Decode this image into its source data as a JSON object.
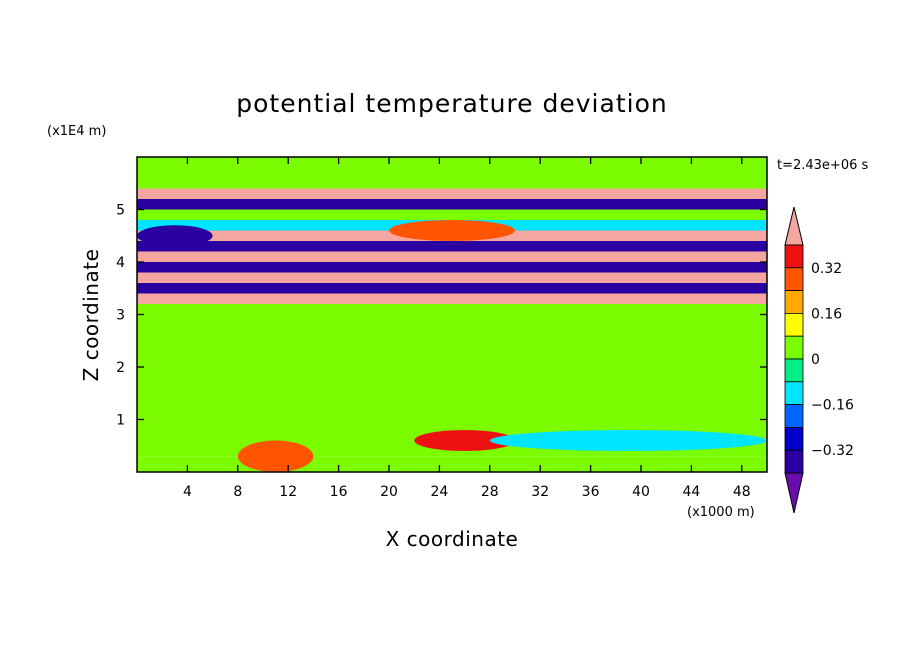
{
  "chart_data": {
    "type": "heatmap",
    "title": "potential temperature deviation",
    "xlabel": "X coordinate",
    "ylabel": "Z coordinate",
    "x_unit": "(x1000 m)",
    "y_unit": "(x1E4 m)",
    "time_label": "t=2.43e+06 s",
    "xlim": [
      0,
      50
    ],
    "ylim": [
      0,
      6
    ],
    "x_ticks": [
      "4",
      "8",
      "12",
      "16",
      "20",
      "24",
      "28",
      "32",
      "36",
      "40",
      "44",
      "48"
    ],
    "y_ticks": [
      "1",
      "2",
      "3",
      "4",
      "5"
    ],
    "colorbar": {
      "ticks": [
        "0.32",
        "0.16",
        "0",
        "-0.16",
        "-0.32"
      ],
      "levels": [
        -0.4,
        -0.32,
        -0.24,
        -0.16,
        -0.08,
        0,
        0.08,
        0.16,
        0.24,
        0.32,
        0.4
      ],
      "colors": [
        "#6a0dad",
        "#2a00a0",
        "#0000c8",
        "#0066ff",
        "#00e5ff",
        "#00ee88",
        "#7cfc00",
        "#ffff00",
        "#ffaa00",
        "#ff5500",
        "#ee1111",
        "#f4a6a0"
      ],
      "extend": "both"
    },
    "layers": [
      {
        "z": [
          0.0,
          0.3
        ],
        "value": 0.04
      },
      {
        "z": [
          0.3,
          0.6
        ],
        "value": 0.0
      },
      {
        "z": [
          0.6,
          0.8
        ],
        "value": 0.04
      },
      {
        "z": [
          0.8,
          3.2
        ],
        "value": 0.04
      },
      {
        "z": [
          3.2,
          3.4
        ],
        "value": 0.45
      },
      {
        "z": [
          3.4,
          3.6
        ],
        "value": -0.36
      },
      {
        "z": [
          3.6,
          3.8
        ],
        "value": 0.45
      },
      {
        "z": [
          3.8,
          4.0
        ],
        "value": -0.36
      },
      {
        "z": [
          4.0,
          4.2
        ],
        "value": 0.45
      },
      {
        "z": [
          4.2,
          4.4
        ],
        "value": -0.36
      },
      {
        "z": [
          4.4,
          4.6
        ],
        "value": 0.45
      },
      {
        "z": [
          4.6,
          4.8
        ],
        "value": -0.1
      },
      {
        "z": [
          4.8,
          5.0
        ],
        "value": 0.05
      },
      {
        "z": [
          5.0,
          5.2
        ],
        "value": -0.36
      },
      {
        "z": [
          5.2,
          5.4
        ],
        "value": 0.45
      },
      {
        "z": [
          5.4,
          6.0
        ],
        "value": 0.04
      }
    ],
    "features": [
      {
        "x": [
          8,
          14
        ],
        "z": [
          0.0,
          0.6
        ],
        "value": 0.3
      },
      {
        "x": [
          22,
          30
        ],
        "z": [
          0.4,
          0.8
        ],
        "value": 0.34
      },
      {
        "x": [
          28,
          50
        ],
        "z": [
          0.4,
          0.8
        ],
        "value": -0.1
      },
      {
        "x": [
          0,
          6
        ],
        "z": [
          4.3,
          4.7
        ],
        "value": -0.36
      },
      {
        "x": [
          20,
          30
        ],
        "z": [
          4.4,
          4.8
        ],
        "value": 0.3
      }
    ]
  }
}
